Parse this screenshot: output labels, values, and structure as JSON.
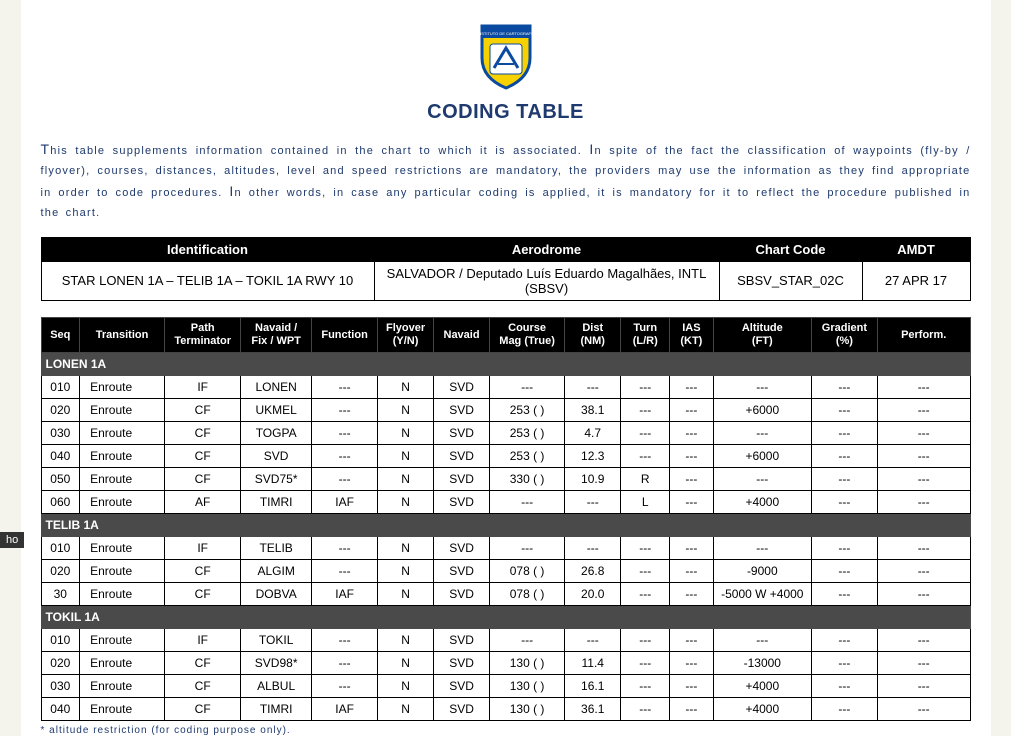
{
  "title": "CODING TABLE",
  "intro_parts": {
    "p1a": "T",
    "p1b": "his table supplements information contained in the chart to which it is associated. ",
    "p2a": "I",
    "p2b": "n spite of the fact the classification of waypoints (fly-by / flyover), courses, distances, altitudes, level and speed restrictions are mandatory, the providers may use the information as they find appropriate in order to code procedures. ",
    "p3a": "I",
    "p3b": "n other words, in case any particular coding is applied, it is mandatory for it to reflect the procedure published in the chart."
  },
  "header_table": {
    "cols": [
      "Identification",
      "Aerodrome",
      "Chart Code",
      "AMDT"
    ],
    "vals": [
      "STAR LONEN 1A – TELIB 1A – TOKIL 1A RWY 10",
      "SALVADOR / Deputado Luís Eduardo Magalhães, INTL (SBSV)",
      "SBSV_STAR_02C",
      "27 APR 17"
    ]
  },
  "code_table": {
    "columns": [
      "Seq",
      "Transition",
      "Path\nTerminator",
      "Navaid /\nFix / WPT",
      "Function",
      "Flyover\n(Y/N)",
      "Navaid",
      "Course\nMag (True)",
      "Dist\n(NM)",
      "Turn\n(L/R)",
      "IAS\n(KT)",
      "Altitude\n(FT)",
      "Gradient\n(%)",
      "Perform."
    ],
    "sections": [
      {
        "name": "LONEN 1A",
        "rows": [
          [
            "010",
            "Enroute",
            "IF",
            "LONEN",
            "---",
            "N",
            "SVD",
            "---",
            "---",
            "---",
            "---",
            "---",
            "---",
            "---"
          ],
          [
            "020",
            "Enroute",
            "CF",
            "UKMEL",
            "---",
            "N",
            "SVD",
            "253 ( )",
            "38.1",
            "---",
            "---",
            "+6000",
            "---",
            "---"
          ],
          [
            "030",
            "Enroute",
            "CF",
            "TOGPA",
            "---",
            "N",
            "SVD",
            "253 ( )",
            "4.7",
            "---",
            "---",
            "---",
            "---",
            "---"
          ],
          [
            "040",
            "Enroute",
            "CF",
            "SVD",
            "---",
            "N",
            "SVD",
            "253 ( )",
            "12.3",
            "---",
            "---",
            "+6000",
            "---",
            "---"
          ],
          [
            "050",
            "Enroute",
            "CF",
            "SVD75*",
            "---",
            "N",
            "SVD",
            "330 ( )",
            "10.9",
            "R",
            "---",
            "---",
            "---",
            "---"
          ],
          [
            "060",
            "Enroute",
            "AF",
            "TIMRI",
            "IAF",
            "N",
            "SVD",
            "---",
            "---",
            "L",
            "---",
            "+4000",
            "---",
            "---"
          ]
        ]
      },
      {
        "name": "TELIB 1A",
        "rows": [
          [
            "010",
            "Enroute",
            "IF",
            "TELIB",
            "---",
            "N",
            "SVD",
            "---",
            "---",
            "---",
            "---",
            "---",
            "---",
            "---"
          ],
          [
            "020",
            "Enroute",
            "CF",
            "ALGIM",
            "---",
            "N",
            "SVD",
            "078 ( )",
            "26.8",
            "---",
            "---",
            "-9000",
            "---",
            "---"
          ],
          [
            "30",
            "Enroute",
            "CF",
            "DOBVA",
            "IAF",
            "N",
            "SVD",
            "078 ( )",
            "20.0",
            "---",
            "---",
            "-5000 W +4000",
            "---",
            "---"
          ]
        ]
      },
      {
        "name": "TOKIL 1A",
        "rows": [
          [
            "010",
            "Enroute",
            "IF",
            "TOKIL",
            "---",
            "N",
            "SVD",
            "---",
            "---",
            "---",
            "---",
            "---",
            "---",
            "---"
          ],
          [
            "020",
            "Enroute",
            "CF",
            "SVD98*",
            "---",
            "N",
            "SVD",
            "130 ( )",
            "11.4",
            "---",
            "---",
            "-13000",
            "---",
            "---"
          ],
          [
            "030",
            "Enroute",
            "CF",
            "ALBUL",
            "---",
            "N",
            "SVD",
            "130 ( )",
            "16.1",
            "---",
            "---",
            "+4000",
            "---",
            "---"
          ],
          [
            "040",
            "Enroute",
            "CF",
            "TIMRI",
            "IAF",
            "N",
            "SVD",
            "130 ( )",
            "36.1",
            "---",
            "---",
            "+4000",
            "---",
            "---"
          ]
        ]
      }
    ]
  },
  "footnote": "* altitude restriction (for coding purpose only).",
  "side_tab": "ho",
  "logo": {
    "shield_fill": "#f7d100",
    "shield_stroke": "#0a4aa0",
    "banner_fill": "#0a4aa0",
    "inner_fill": "#ffffff"
  },
  "colors": {
    "page_bg": "#ffffff",
    "body_bg": "#f5f4ec",
    "text_blue": "#1e3a6e",
    "th_bg": "#000000",
    "section_bg": "#4a4a4a"
  }
}
